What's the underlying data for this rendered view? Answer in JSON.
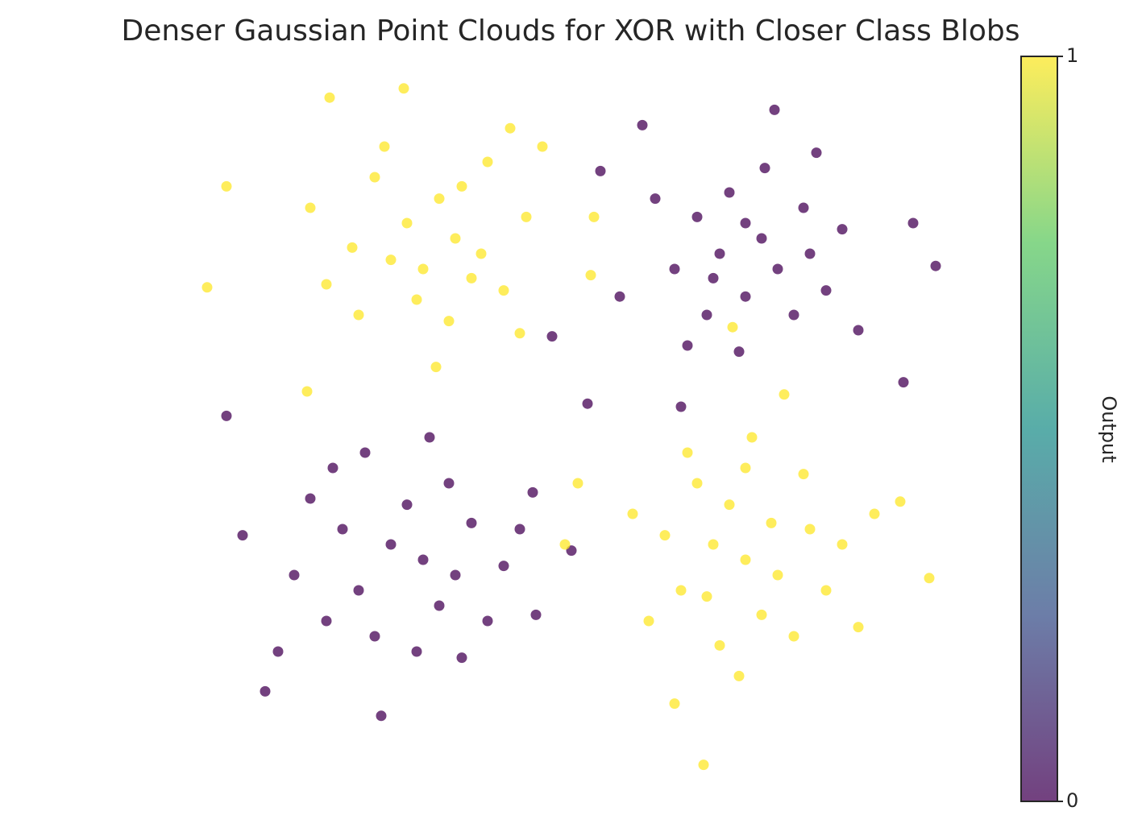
{
  "chart_data": {
    "type": "scatter",
    "title": "Denser Gaussian Point Clouds for XOR with Closer Class Blobs",
    "colorbar_label": "Output",
    "xlim": [
      -0.75,
      1.65
    ],
    "ylim": [
      -0.72,
      1.58
    ],
    "clim": [
      0,
      1
    ],
    "cticks": [
      0,
      1
    ],
    "colormap": [
      "#440154",
      "#3b528b",
      "#21918c",
      "#5ec962",
      "#fde725"
    ],
    "alpha": 0.75,
    "x": [
      -0.61,
      -0.67,
      -0.06,
      -0.29,
      0.27,
      0.37,
      0.53,
      0.52,
      -0.36,
      0.04,
      0.3,
      -0.15,
      0.05,
      0.1,
      -0.1,
      0.0,
      -0.22,
      0.18,
      -0.05,
      0.12,
      -0.3,
      0.25,
      -0.2,
      0.08,
      -0.35,
      0.32,
      -0.02,
      0.15,
      -0.12,
      0.2,
      0.68,
      1.09,
      1.22,
      0.55,
      1.52,
      1.59,
      0.61,
      0.4,
      1.49,
      0.8,
      1.0,
      0.92,
      1.05,
      0.85,
      1.1,
      0.95,
      1.2,
      0.78,
      1.0,
      0.88,
      1.15,
      1.3,
      0.72,
      1.25,
      0.98,
      1.06,
      0.9,
      1.18,
      0.82,
      1.35,
      -0.61,
      -0.56,
      -0.49,
      -0.13,
      0.46,
      0.51,
      0.34,
      0.0,
      -0.1,
      0.1,
      -0.2,
      0.15,
      -0.05,
      0.05,
      -0.25,
      0.25,
      -0.15,
      0.2,
      -0.3,
      0.08,
      -0.35,
      0.3,
      -0.02,
      -0.28,
      0.12,
      -0.4,
      0.35,
      -0.18,
      0.02,
      -0.45,
      1.57,
      1.48,
      0.78,
      1.12,
      0.48,
      0.44,
      1.0,
      0.9,
      1.1,
      0.8,
      1.2,
      0.95,
      1.05,
      0.85,
      1.15,
      0.75,
      1.25,
      1.0,
      0.92,
      1.3,
      0.7,
      1.08,
      0.88,
      1.18,
      0.65,
      1.35,
      0.98,
      1.02,
      0.82,
      1.4,
      0.96,
      0.87
    ],
    "y": [
      1.22,
      0.89,
      1.54,
      1.51,
      1.41,
      1.35,
      1.12,
      0.93,
      0.55,
      0.63,
      0.74,
      1.25,
      1.18,
      1.05,
      0.98,
      0.95,
      1.02,
      1.0,
      1.1,
      1.22,
      0.9,
      0.88,
      0.8,
      0.78,
      1.15,
      1.12,
      0.85,
      0.92,
      1.35,
      1.3,
      1.42,
      1.47,
      1.33,
      1.27,
      1.1,
      0.96,
      0.86,
      0.73,
      0.58,
      0.5,
      0.86,
      1.0,
      1.05,
      1.12,
      0.95,
      1.2,
      1.0,
      0.95,
      1.1,
      0.8,
      0.8,
      1.08,
      1.18,
      0.88,
      0.68,
      1.28,
      0.92,
      1.15,
      0.7,
      0.75,
      0.47,
      0.08,
      -0.43,
      -0.51,
      0.03,
      0.51,
      0.22,
      0.0,
      0.05,
      -0.05,
      -0.1,
      0.12,
      0.18,
      -0.15,
      0.1,
      -0.02,
      -0.25,
      -0.2,
      -0.2,
      0.25,
      0.2,
      0.1,
      -0.3,
      0.3,
      -0.32,
      -0.05,
      -0.18,
      0.35,
      0.4,
      -0.3,
      -0.06,
      0.19,
      -0.47,
      0.54,
      0.25,
      0.05,
      0.0,
      0.05,
      -0.05,
      -0.1,
      0.1,
      0.18,
      -0.18,
      0.25,
      -0.25,
      0.08,
      -0.1,
      0.3,
      -0.28,
      0.05,
      -0.2,
      0.12,
      -0.12,
      0.28,
      0.15,
      -0.22,
      -0.38,
      0.4,
      0.35,
      0.15,
      0.76,
      -0.67
    ],
    "values": [
      1,
      1,
      1,
      1,
      1,
      1,
      1,
      1,
      1,
      1,
      1,
      1,
      1,
      1,
      1,
      1,
      1,
      1,
      1,
      1,
      1,
      1,
      1,
      1,
      1,
      1,
      1,
      1,
      1,
      1,
      0,
      0,
      0,
      0,
      0,
      0,
      0,
      0,
      0,
      0,
      0,
      0,
      0,
      0,
      0,
      0,
      0,
      0,
      0,
      0,
      0,
      0,
      0,
      0,
      0,
      0,
      0,
      0,
      0,
      0,
      0,
      0,
      0,
      0,
      0,
      0,
      0,
      0,
      0,
      0,
      0,
      0,
      0,
      0,
      0,
      0,
      0,
      0,
      0,
      0,
      0,
      0,
      0,
      0,
      0,
      0,
      0,
      0,
      0,
      0,
      1,
      1,
      1,
      1,
      1,
      1,
      1,
      1,
      1,
      1,
      1,
      1,
      1,
      1,
      1,
      1,
      1,
      1,
      1,
      1,
      1,
      1,
      1,
      1,
      1,
      1,
      1,
      1,
      1,
      1,
      1,
      1
    ]
  }
}
